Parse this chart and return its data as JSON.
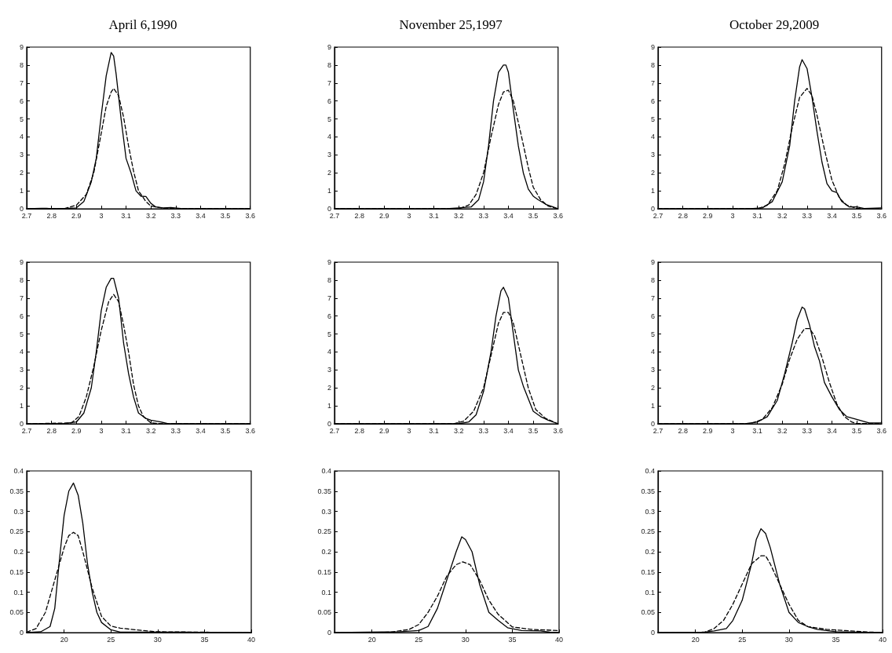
{
  "chart_data": [
    {
      "type": "line",
      "title": "April 6,1990",
      "xlim": [
        2.7,
        3.6
      ],
      "xticks": [
        2.7,
        2.8,
        2.9,
        3,
        3.1,
        3.2,
        3.3,
        3.4,
        3.5,
        3.6
      ],
      "ylim": [
        0,
        9
      ],
      "yticks": [
        0,
        1,
        2,
        3,
        4,
        5,
        6,
        7,
        8,
        9
      ],
      "marker": "none",
      "series": [
        {
          "color": "#000000",
          "line_style": "solid",
          "x": [
            2.7,
            2.76,
            2.78,
            2.8,
            2.85,
            2.9,
            2.93,
            2.96,
            2.98,
            3.0,
            3.02,
            3.04,
            3.05,
            3.06,
            3.08,
            3.1,
            3.12,
            3.14,
            3.16,
            3.18,
            3.2,
            3.22,
            3.25,
            3.28,
            3.32,
            3.4,
            3.6
          ],
          "values": [
            0,
            0.03,
            0.03,
            0,
            0.02,
            0.05,
            0.4,
            1.5,
            2.8,
            5.2,
            7.4,
            8.7,
            8.5,
            7.5,
            5,
            2.8,
            2.0,
            1.0,
            0.7,
            0.68,
            0.3,
            0.1,
            0.05,
            0.07,
            0.02,
            0,
            0
          ]
        },
        {
          "color": "#000000",
          "line_style": "dashed",
          "x": [
            2.7,
            2.85,
            2.9,
            2.94,
            2.97,
            3.0,
            3.02,
            3.04,
            3.05,
            3.07,
            3.09,
            3.11,
            3.13,
            3.15,
            3.18,
            3.2,
            3.25,
            3.3,
            3.6
          ],
          "values": [
            0,
            0,
            0.2,
            0.8,
            2.0,
            4.2,
            5.7,
            6.5,
            6.7,
            6.3,
            5.1,
            3.5,
            2.1,
            1.0,
            0.4,
            0.15,
            0.03,
            0,
            0
          ]
        }
      ]
    },
    {
      "type": "line",
      "title": "November 25,1997",
      "xlim": [
        2.7,
        3.6
      ],
      "xticks": [
        2.7,
        2.8,
        2.9,
        3,
        3.1,
        3.2,
        3.3,
        3.4,
        3.5,
        3.6
      ],
      "ylim": [
        0,
        9
      ],
      "yticks": [
        0,
        1,
        2,
        3,
        4,
        5,
        6,
        7,
        8,
        9
      ],
      "marker": "none",
      "series": [
        {
          "color": "#000000",
          "line_style": "solid",
          "x": [
            2.7,
            3.15,
            3.2,
            3.25,
            3.28,
            3.3,
            3.32,
            3.34,
            3.36,
            3.38,
            3.39,
            3.4,
            3.42,
            3.44,
            3.46,
            3.48,
            3.5,
            3.52,
            3.55,
            3.58,
            3.6
          ],
          "values": [
            0,
            0,
            0.05,
            0.1,
            0.5,
            1.5,
            3.5,
            6.0,
            7.6,
            8.0,
            8.0,
            7.6,
            5.5,
            3.5,
            2.0,
            1.1,
            0.7,
            0.5,
            0.25,
            0.1,
            0
          ]
        },
        {
          "color": "#000000",
          "line_style": "dashed",
          "x": [
            2.7,
            3.2,
            3.24,
            3.27,
            3.3,
            3.33,
            3.36,
            3.38,
            3.4,
            3.42,
            3.45,
            3.48,
            3.5,
            3.53,
            3.56,
            3.6
          ],
          "values": [
            0,
            0,
            0.2,
            0.8,
            2.0,
            4.0,
            5.8,
            6.5,
            6.6,
            6.0,
            4.2,
            2.3,
            1.2,
            0.5,
            0.15,
            0
          ]
        }
      ]
    },
    {
      "type": "line",
      "title": "October 29,2009",
      "xlim": [
        2.7,
        3.6
      ],
      "xticks": [
        2.7,
        2.8,
        2.9,
        3,
        3.1,
        3.2,
        3.3,
        3.4,
        3.5,
        3.6
      ],
      "ylim": [
        0,
        9
      ],
      "yticks": [
        0,
        1,
        2,
        3,
        4,
        5,
        6,
        7,
        8,
        9
      ],
      "marker": "none",
      "series": [
        {
          "color": "#000000",
          "line_style": "solid",
          "x": [
            2.7,
            3.07,
            3.12,
            3.16,
            3.2,
            3.23,
            3.25,
            3.27,
            3.28,
            3.3,
            3.32,
            3.34,
            3.36,
            3.38,
            3.4,
            3.42,
            3.44,
            3.47,
            3.5,
            3.53,
            3.6
          ],
          "values": [
            0,
            0,
            0.05,
            0.4,
            1.5,
            3.5,
            6,
            7.9,
            8.3,
            7.8,
            6.2,
            4.3,
            2.6,
            1.4,
            1.0,
            0.9,
            0.4,
            0.1,
            0.1,
            0.02,
            0.05
          ]
        },
        {
          "color": "#000000",
          "line_style": "dashed",
          "x": [
            2.7,
            3.1,
            3.14,
            3.18,
            3.21,
            3.24,
            3.27,
            3.3,
            3.32,
            3.34,
            3.37,
            3.4,
            3.43,
            3.46,
            3.5,
            3.6
          ],
          "values": [
            0,
            0,
            0.2,
            1.0,
            2.5,
            4.5,
            6.2,
            6.7,
            6.3,
            5.2,
            3.3,
            1.6,
            0.6,
            0.2,
            0.02,
            0
          ]
        }
      ]
    },
    {
      "type": "line",
      "xlim": [
        2.7,
        3.6
      ],
      "xticks": [
        2.7,
        2.8,
        2.9,
        3,
        3.1,
        3.2,
        3.3,
        3.4,
        3.5,
        3.6
      ],
      "ylim": [
        0,
        9
      ],
      "yticks": [
        0,
        1,
        2,
        3,
        4,
        5,
        6,
        7,
        8,
        9
      ],
      "marker": "none",
      "series": [
        {
          "color": "#000000",
          "line_style": "solid",
          "x": [
            2.7,
            2.85,
            2.9,
            2.93,
            2.96,
            2.98,
            3.0,
            3.02,
            3.04,
            3.05,
            3.07,
            3.09,
            3.11,
            3.13,
            3.15,
            3.18,
            3.2,
            3.24,
            3.27,
            3.6
          ],
          "values": [
            0,
            0.02,
            0.1,
            0.6,
            2.0,
            4.0,
            6.3,
            7.6,
            8.1,
            8.1,
            7.0,
            4.5,
            2.8,
            1.5,
            0.6,
            0.3,
            0.2,
            0.1,
            0,
            0
          ]
        },
        {
          "color": "#000000",
          "line_style": "dashed",
          "x": [
            2.7,
            2.88,
            2.91,
            2.94,
            2.97,
            3.0,
            3.03,
            3.05,
            3.07,
            3.09,
            3.11,
            3.13,
            3.15,
            3.17,
            3.2,
            3.25,
            3.6
          ],
          "values": [
            0,
            0.05,
            0.4,
            1.5,
            3.2,
            5.2,
            6.8,
            7.2,
            6.8,
            5.5,
            4.0,
            2.2,
            1.0,
            0.4,
            0.05,
            0,
            0
          ]
        }
      ]
    },
    {
      "type": "line",
      "xlim": [
        2.7,
        3.6
      ],
      "xticks": [
        2.7,
        2.8,
        2.9,
        3,
        3.1,
        3.2,
        3.3,
        3.4,
        3.5,
        3.6
      ],
      "ylim": [
        0,
        9
      ],
      "yticks": [
        0,
        1,
        2,
        3,
        4,
        5,
        6,
        7,
        8,
        9
      ],
      "marker": "none",
      "series": [
        {
          "color": "#000000",
          "line_style": "solid",
          "x": [
            2.7,
            3.2,
            3.24,
            3.27,
            3.3,
            3.33,
            3.35,
            3.37,
            3.38,
            3.4,
            3.42,
            3.44,
            3.46,
            3.48,
            3.5,
            3.53,
            3.56,
            3.6
          ],
          "values": [
            0,
            0,
            0.1,
            0.5,
            1.8,
            4.0,
            6.0,
            7.4,
            7.6,
            7.0,
            5.0,
            3.0,
            2.1,
            1.4,
            0.7,
            0.4,
            0.2,
            0
          ]
        },
        {
          "color": "#000000",
          "line_style": "dashed",
          "x": [
            2.7,
            3.18,
            3.22,
            3.26,
            3.3,
            3.33,
            3.36,
            3.38,
            3.4,
            3.42,
            3.45,
            3.48,
            3.51,
            3.55,
            3.6
          ],
          "values": [
            0,
            0,
            0.15,
            0.7,
            2.0,
            3.8,
            5.6,
            6.2,
            6.2,
            5.6,
            3.8,
            2.0,
            0.8,
            0.3,
            0
          ]
        }
      ]
    },
    {
      "type": "line",
      "xlim": [
        2.7,
        3.6
      ],
      "xticks": [
        2.7,
        2.8,
        2.9,
        3,
        3.1,
        3.2,
        3.3,
        3.4,
        3.5,
        3.6
      ],
      "ylim": [
        0,
        9
      ],
      "yticks": [
        0,
        1,
        2,
        3,
        4,
        5,
        6,
        7,
        8,
        9
      ],
      "marker": "none",
      "series": [
        {
          "color": "#000000",
          "line_style": "solid",
          "x": [
            2.7,
            3.05,
            3.1,
            3.14,
            3.18,
            3.21,
            3.24,
            3.26,
            3.28,
            3.29,
            3.31,
            3.33,
            3.35,
            3.37,
            3.4,
            3.43,
            3.46,
            3.5,
            3.55,
            3.6
          ],
          "values": [
            0,
            0,
            0.1,
            0.4,
            1.3,
            2.8,
            4.5,
            5.8,
            6.5,
            6.4,
            5.5,
            4.3,
            3.5,
            2.3,
            1.5,
            0.8,
            0.4,
            0.25,
            0.05,
            0.05
          ]
        },
        {
          "color": "#000000",
          "line_style": "dashed",
          "x": [
            2.7,
            3.07,
            3.12,
            3.16,
            3.2,
            3.23,
            3.26,
            3.29,
            3.31,
            3.33,
            3.36,
            3.39,
            3.42,
            3.45,
            3.48,
            3.5,
            3.6
          ],
          "values": [
            0,
            0,
            0.25,
            0.9,
            2.2,
            3.6,
            4.7,
            5.3,
            5.3,
            4.9,
            3.7,
            2.3,
            1.1,
            0.4,
            0.1,
            0.02,
            0
          ]
        }
      ]
    },
    {
      "type": "line",
      "xlim": [
        16,
        40
      ],
      "xticks": [
        20,
        25,
        30,
        35,
        40
      ],
      "ylim": [
        0,
        0.4
      ],
      "yticks": [
        0,
        0.05,
        0.1,
        0.15,
        0.2,
        0.25,
        0.3,
        0.35,
        0.4
      ],
      "marker": "none",
      "series": [
        {
          "color": "#000000",
          "line_style": "solid",
          "x": [
            16,
            17.5,
            18.5,
            19,
            19.5,
            20,
            20.5,
            21,
            21.5,
            22,
            22.5,
            23,
            23.5,
            24,
            25,
            26,
            28,
            33,
            40
          ],
          "values": [
            0,
            0.002,
            0.015,
            0.06,
            0.18,
            0.29,
            0.35,
            0.37,
            0.34,
            0.27,
            0.17,
            0.1,
            0.05,
            0.025,
            0.007,
            0.001,
            0.001,
            0.001,
            0
          ]
        },
        {
          "color": "#000000",
          "line_style": "dashed",
          "x": [
            16,
            17,
            18,
            19,
            20,
            20.5,
            21,
            21.5,
            22,
            23,
            24,
            25,
            26,
            28,
            30,
            40
          ],
          "values": [
            0.001,
            0.01,
            0.05,
            0.13,
            0.21,
            0.24,
            0.248,
            0.24,
            0.2,
            0.11,
            0.04,
            0.016,
            0.011,
            0.006,
            0.002,
            0
          ]
        }
      ]
    },
    {
      "type": "line",
      "xlim": [
        16,
        40
      ],
      "xticks": [
        20,
        25,
        30,
        35,
        40
      ],
      "ylim": [
        0,
        0.4
      ],
      "yticks": [
        0,
        0.05,
        0.1,
        0.15,
        0.2,
        0.25,
        0.3,
        0.35,
        0.4
      ],
      "marker": "none",
      "series": [
        {
          "color": "#000000",
          "line_style": "solid",
          "x": [
            16,
            23,
            25,
            26,
            27,
            28,
            29,
            29.6,
            30,
            30.7,
            31.5,
            32.5,
            33.5,
            34.5,
            36,
            38,
            39,
            40
          ],
          "values": [
            0,
            0.002,
            0.005,
            0.015,
            0.06,
            0.13,
            0.2,
            0.237,
            0.23,
            0.2,
            0.12,
            0.05,
            0.03,
            0.012,
            0.005,
            0.004,
            0.001,
            0
          ]
        },
        {
          "color": "#000000",
          "line_style": "dashed",
          "x": [
            16,
            22,
            24,
            25,
            26,
            27,
            28,
            29,
            29.7,
            30.5,
            31.5,
            32.5,
            33.5,
            35,
            37,
            40
          ],
          "values": [
            0,
            0.001,
            0.008,
            0.02,
            0.05,
            0.09,
            0.14,
            0.168,
            0.175,
            0.168,
            0.13,
            0.08,
            0.045,
            0.014,
            0.008,
            0.005
          ]
        }
      ]
    },
    {
      "type": "line",
      "xlim": [
        16,
        40
      ],
      "xticks": [
        20,
        25,
        30,
        35,
        40
      ],
      "ylim": [
        0,
        0.4
      ],
      "yticks": [
        0,
        0.05,
        0.1,
        0.15,
        0.2,
        0.25,
        0.3,
        0.35,
        0.4
      ],
      "marker": "none",
      "series": [
        {
          "color": "#000000",
          "line_style": "solid",
          "x": [
            16,
            21,
            22,
            23.3,
            24,
            25,
            26,
            26.5,
            27,
            27.5,
            28,
            29,
            30,
            31,
            32,
            33,
            35,
            37,
            40
          ],
          "values": [
            0,
            0.001,
            0.004,
            0.01,
            0.03,
            0.08,
            0.17,
            0.23,
            0.257,
            0.245,
            0.21,
            0.12,
            0.05,
            0.025,
            0.015,
            0.008,
            0.002,
            0.001,
            0
          ]
        },
        {
          "color": "#000000",
          "line_style": "dashed",
          "x": [
            16,
            21,
            22,
            23,
            24,
            25,
            26,
            27,
            27.5,
            28,
            29,
            30,
            31,
            32,
            34,
            36,
            38,
            40
          ],
          "values": [
            0,
            0.001,
            0.01,
            0.03,
            0.07,
            0.12,
            0.17,
            0.19,
            0.19,
            0.17,
            0.12,
            0.07,
            0.03,
            0.015,
            0.008,
            0.005,
            0.002,
            0
          ]
        }
      ]
    }
  ]
}
